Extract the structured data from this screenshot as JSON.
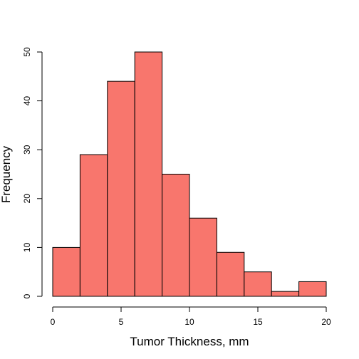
{
  "chart_data": {
    "type": "bar",
    "subtype": "histogram",
    "title": "",
    "xlabel": "Tumor Thickness, mm",
    "ylabel": "Frequency",
    "bins": [
      [
        0,
        2
      ],
      [
        2,
        4
      ],
      [
        4,
        6
      ],
      [
        6,
        8
      ],
      [
        8,
        10
      ],
      [
        10,
        12
      ],
      [
        12,
        14
      ],
      [
        14,
        16
      ],
      [
        16,
        18
      ],
      [
        18,
        20
      ]
    ],
    "values": [
      10,
      29,
      44,
      50,
      25,
      16,
      9,
      5,
      1,
      3
    ],
    "xlim": [
      0,
      20
    ],
    "ylim": [
      0,
      50
    ],
    "xticks": [
      0,
      5,
      10,
      15,
      20
    ],
    "yticks": [
      0,
      10,
      20,
      30,
      40,
      50
    ],
    "grid": false,
    "bar_color": "#f8766d",
    "edge_color": "#000000"
  }
}
